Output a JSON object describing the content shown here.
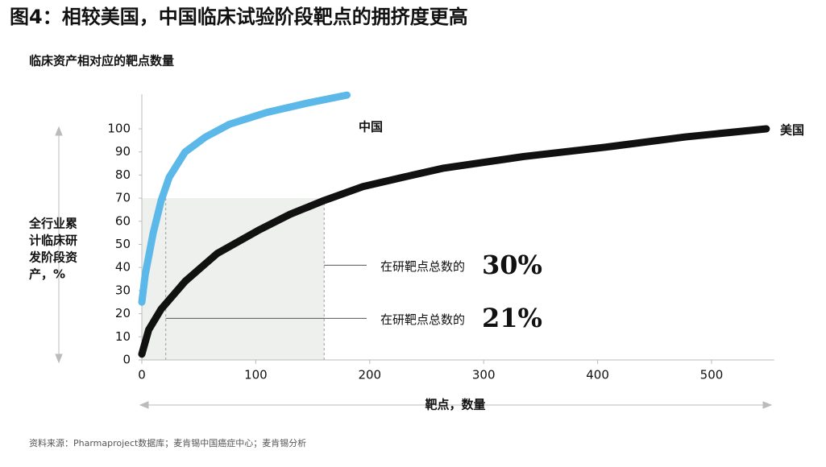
{
  "chart_data": {
    "type": "line",
    "title": "图4：相较美国，中国临床试验阶段靶点的拥挤度更高",
    "subtitle": "临床资产相对应的靶点数量",
    "ylabel": [
      "全行业累",
      "计临床研",
      "发阶段资",
      "产，%"
    ],
    "xlabel": "靶点，数量",
    "source": "资料来源：Pharmaproject数据库；麦肯锡中国癌症中心；麦肯锡分析",
    "xlim": [
      0,
      555
    ],
    "ylim": [
      0,
      115
    ],
    "xticks": [
      0,
      100,
      200,
      300,
      400,
      500
    ],
    "yticks": [
      0,
      10,
      20,
      30,
      40,
      50,
      60,
      70,
      80,
      90,
      100
    ],
    "series": [
      {
        "name": "中国",
        "color": "#5bb8e8",
        "x": [
          0,
          3,
          10,
          17,
          24,
          38,
          56,
          77,
          109,
          144,
          180
        ],
        "values": [
          25,
          37,
          55,
          69,
          79,
          90,
          96.5,
          102,
          107,
          111,
          114.6
        ]
      },
      {
        "name": "美国",
        "color": "#111111",
        "x": [
          0,
          6,
          17,
          38,
          66,
          102,
          130,
          160,
          194,
          229,
          265,
          335,
          406,
          477,
          548
        ],
        "values": [
          2.5,
          13,
          22,
          34,
          46,
          56,
          63,
          69,
          75,
          79,
          83,
          88,
          92,
          96.5,
          100
        ]
      }
    ],
    "shade": {
      "x": 160,
      "y": 70
    },
    "annotations": [
      {
        "text": "在研靶点总数的",
        "label": "30%",
        "x": 160,
        "y": 41
      },
      {
        "text": "在研靶点总数的",
        "label": "21%",
        "x": 21,
        "y": 18
      }
    ]
  }
}
